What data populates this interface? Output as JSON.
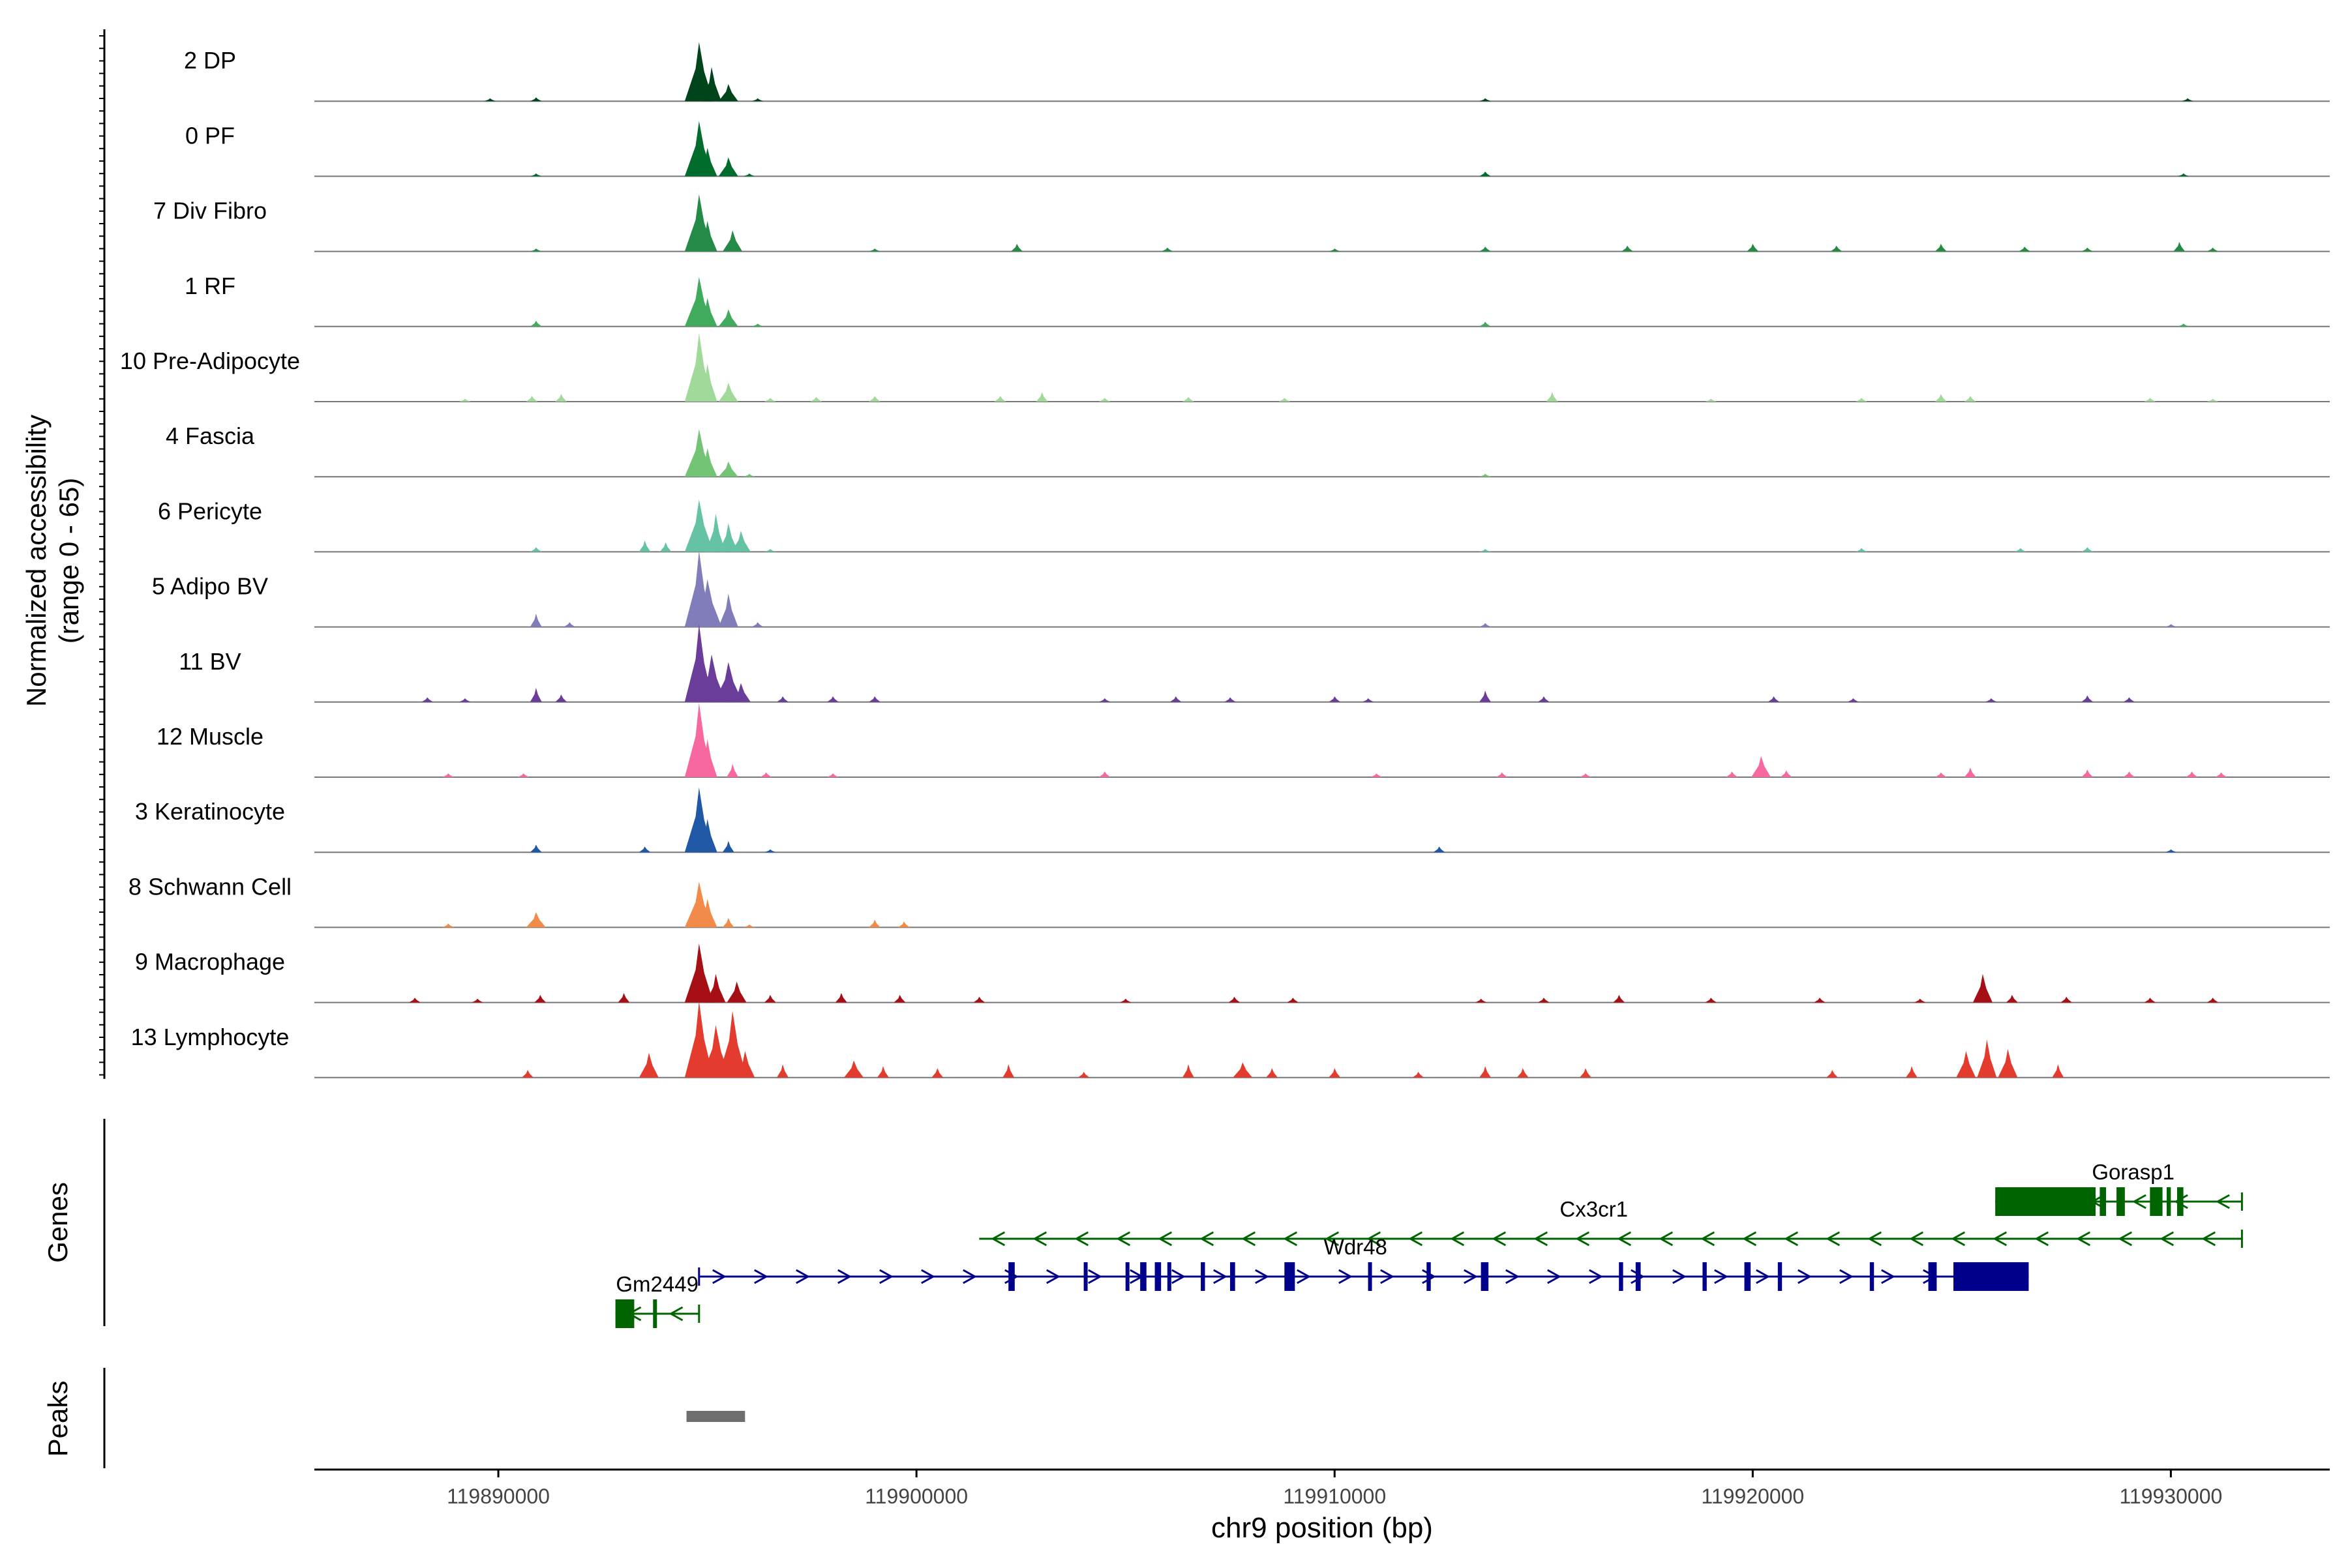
{
  "chart_data": {
    "type": "area",
    "title": "",
    "xlabel": "chr9 position (bp)",
    "ylabel": "Normalized accessibility",
    "ylabel_sub": "(range 0 - 65)",
    "ylim": [
      0,
      65
    ],
    "xlim": [
      119885600,
      119933800
    ],
    "x_ticks": [
      {
        "value": 119890000,
        "label": "119890000"
      },
      {
        "value": 119900000,
        "label": "119900000"
      },
      {
        "value": 119910000,
        "label": "119910000"
      },
      {
        "value": 119920000,
        "label": "119920000"
      },
      {
        "value": 119930000,
        "label": "119930000"
      }
    ],
    "series": [
      {
        "name": "2 DP",
        "color": "#00441b",
        "points": [
          [
            119889800,
            3
          ],
          [
            119890900,
            4
          ],
          [
            119894800,
            62
          ],
          [
            119895100,
            36
          ],
          [
            119895500,
            18
          ],
          [
            119896200,
            3
          ],
          [
            119913600,
            3
          ],
          [
            119930400,
            3
          ]
        ]
      },
      {
        "name": "0 PF",
        "color": "#006d2c",
        "points": [
          [
            119890900,
            3
          ],
          [
            119894800,
            58
          ],
          [
            119895000,
            30
          ],
          [
            119895500,
            20
          ],
          [
            119896000,
            3
          ],
          [
            119913600,
            5
          ],
          [
            119930300,
            3
          ]
        ]
      },
      {
        "name": "7 Div Fibro",
        "color": "#238b45",
        "points": [
          [
            119890900,
            3
          ],
          [
            119894800,
            60
          ],
          [
            119895000,
            32
          ],
          [
            119895600,
            22
          ],
          [
            119899000,
            3
          ],
          [
            119902400,
            8
          ],
          [
            119906000,
            4
          ],
          [
            119910000,
            3
          ],
          [
            119913600,
            5
          ],
          [
            119917000,
            6
          ],
          [
            119920000,
            8
          ],
          [
            119922000,
            6
          ],
          [
            119924500,
            8
          ],
          [
            119926500,
            5
          ],
          [
            119928000,
            4
          ],
          [
            119930200,
            10
          ],
          [
            119931000,
            4
          ]
        ]
      },
      {
        "name": "1 RF",
        "color": "#41ab5d",
        "points": [
          [
            119890900,
            6
          ],
          [
            119894800,
            52
          ],
          [
            119895000,
            30
          ],
          [
            119895500,
            18
          ],
          [
            119896200,
            3
          ],
          [
            119913600,
            5
          ],
          [
            119930300,
            3
          ]
        ]
      },
      {
        "name": "10 Pre-Adipocyte",
        "color": "#a1d99b",
        "points": [
          [
            119889200,
            3
          ],
          [
            119890800,
            6
          ],
          [
            119891500,
            8
          ],
          [
            119894800,
            72
          ],
          [
            119895000,
            40
          ],
          [
            119895500,
            20
          ],
          [
            119896500,
            4
          ],
          [
            119897600,
            5
          ],
          [
            119899000,
            6
          ],
          [
            119902000,
            6
          ],
          [
            119903000,
            10
          ],
          [
            119904500,
            4
          ],
          [
            119906500,
            5
          ],
          [
            119908800,
            4
          ],
          [
            119915200,
            10
          ],
          [
            119919000,
            3
          ],
          [
            119922600,
            4
          ],
          [
            119924500,
            8
          ],
          [
            119925200,
            6
          ],
          [
            119929500,
            4
          ],
          [
            119931000,
            3
          ]
        ]
      },
      {
        "name": "4 Fascia",
        "color": "#74c476",
        "points": [
          [
            119894800,
            50
          ],
          [
            119895000,
            30
          ],
          [
            119895500,
            16
          ],
          [
            119896000,
            3
          ],
          [
            119913600,
            3
          ]
        ]
      },
      {
        "name": "6 Pericyte",
        "color": "#66c2a4",
        "points": [
          [
            119890900,
            5
          ],
          [
            119893500,
            12
          ],
          [
            119894000,
            10
          ],
          [
            119894800,
            55
          ],
          [
            119895200,
            40
          ],
          [
            119895500,
            30
          ],
          [
            119895800,
            22
          ],
          [
            119896500,
            3
          ],
          [
            119913600,
            3
          ],
          [
            119922600,
            4
          ],
          [
            119926400,
            4
          ],
          [
            119928000,
            5
          ]
        ]
      },
      {
        "name": "5 Adipo BV",
        "color": "#807dba",
        "points": [
          [
            119890900,
            14
          ],
          [
            119891700,
            5
          ],
          [
            119894800,
            80
          ],
          [
            119895000,
            50
          ],
          [
            119895500,
            35
          ],
          [
            119896200,
            5
          ],
          [
            119913600,
            4
          ],
          [
            119930000,
            3
          ]
        ]
      },
      {
        "name": "11 BV",
        "color": "#6a3d9a",
        "points": [
          [
            119888300,
            5
          ],
          [
            119889200,
            4
          ],
          [
            119890900,
            15
          ],
          [
            119891500,
            8
          ],
          [
            119894800,
            82
          ],
          [
            119895100,
            50
          ],
          [
            119895500,
            42
          ],
          [
            119895800,
            20
          ],
          [
            119896800,
            6
          ],
          [
            119898000,
            6
          ],
          [
            119899000,
            6
          ],
          [
            119904500,
            4
          ],
          [
            119906200,
            6
          ],
          [
            119907500,
            5
          ],
          [
            119910000,
            6
          ],
          [
            119910800,
            4
          ],
          [
            119913600,
            12
          ],
          [
            119915000,
            6
          ],
          [
            119920500,
            6
          ],
          [
            119922400,
            4
          ],
          [
            119925700,
            4
          ],
          [
            119928000,
            7
          ],
          [
            119929000,
            5
          ]
        ]
      },
      {
        "name": "12 Muscle",
        "color": "#f768a1",
        "points": [
          [
            119888800,
            4
          ],
          [
            119890600,
            4
          ],
          [
            119894800,
            78
          ],
          [
            119895000,
            40
          ],
          [
            119895600,
            14
          ],
          [
            119896400,
            5
          ],
          [
            119898000,
            4
          ],
          [
            119904500,
            6
          ],
          [
            119911000,
            4
          ],
          [
            119914000,
            5
          ],
          [
            119916000,
            4
          ],
          [
            119919500,
            6
          ],
          [
            119920200,
            22
          ],
          [
            119920800,
            7
          ],
          [
            119924500,
            5
          ],
          [
            119925200,
            10
          ],
          [
            119928000,
            8
          ],
          [
            119929000,
            6
          ],
          [
            119930500,
            6
          ],
          [
            119931200,
            5
          ]
        ]
      },
      {
        "name": "3 Keratinocyte",
        "color": "#2158a6",
        "points": [
          [
            119890900,
            8
          ],
          [
            119893500,
            6
          ],
          [
            119894800,
            68
          ],
          [
            119895000,
            35
          ],
          [
            119895500,
            12
          ],
          [
            119896500,
            3
          ],
          [
            119912500,
            6
          ],
          [
            119930000,
            3
          ]
        ]
      },
      {
        "name": "8 Schwann Cell",
        "color": "#f28a4a",
        "points": [
          [
            119888800,
            4
          ],
          [
            119890900,
            16
          ],
          [
            119894800,
            48
          ],
          [
            119895000,
            30
          ],
          [
            119895500,
            10
          ],
          [
            119896000,
            3
          ],
          [
            119899000,
            8
          ],
          [
            119899700,
            6
          ]
        ]
      },
      {
        "name": "9 Macrophage",
        "color": "#a50f15",
        "points": [
          [
            119888000,
            5
          ],
          [
            119889500,
            4
          ],
          [
            119891000,
            8
          ],
          [
            119893000,
            10
          ],
          [
            119894800,
            62
          ],
          [
            119895200,
            30
          ],
          [
            119895700,
            22
          ],
          [
            119896500,
            8
          ],
          [
            119898200,
            10
          ],
          [
            119899600,
            8
          ],
          [
            119901500,
            6
          ],
          [
            119905000,
            4
          ],
          [
            119907600,
            6
          ],
          [
            119909000,
            5
          ],
          [
            119913500,
            4
          ],
          [
            119915000,
            5
          ],
          [
            119916800,
            8
          ],
          [
            119919000,
            5
          ],
          [
            119921600,
            5
          ],
          [
            119924000,
            4
          ],
          [
            119925500,
            30
          ],
          [
            119926200,
            8
          ],
          [
            119927500,
            6
          ],
          [
            119929500,
            5
          ],
          [
            119931000,
            5
          ]
        ]
      },
      {
        "name": "13 Lymphocyte",
        "color": "#e33b2d",
        "points": [
          [
            119890700,
            8
          ],
          [
            119893600,
            26
          ],
          [
            119894800,
            80
          ],
          [
            119895200,
            55
          ],
          [
            119895600,
            70
          ],
          [
            119895900,
            28
          ],
          [
            119896800,
            14
          ],
          [
            119898500,
            18
          ],
          [
            119899200,
            12
          ],
          [
            119900500,
            10
          ],
          [
            119902200,
            14
          ],
          [
            119904000,
            6
          ],
          [
            119906500,
            14
          ],
          [
            119907800,
            16
          ],
          [
            119908500,
            10
          ],
          [
            119910000,
            10
          ],
          [
            119912000,
            6
          ],
          [
            119913600,
            12
          ],
          [
            119914500,
            10
          ],
          [
            119916000,
            10
          ],
          [
            119921900,
            8
          ],
          [
            119923800,
            12
          ],
          [
            119925100,
            28
          ],
          [
            119925600,
            40
          ],
          [
            119926100,
            30
          ],
          [
            119927300,
            14
          ]
        ]
      }
    ],
    "genes": [
      {
        "name": "Gorasp1",
        "start": 119925800,
        "end": 119931700,
        "strand": "-",
        "color": "#006400",
        "label_x": 119929100,
        "exons": [
          [
            119925800,
            119928200
          ],
          [
            119928300,
            119928450
          ],
          [
            119928700,
            119928900
          ],
          [
            119929500,
            119929800
          ],
          [
            119929900,
            119930000
          ],
          [
            119930150,
            119930300
          ]
        ]
      },
      {
        "name": "Cx3cr1",
        "start": 119901500,
        "end": 119931700,
        "strand": "-",
        "color": "#006400",
        "label_x": 119916200,
        "exons": []
      },
      {
        "name": "Wdr48",
        "start": 119894800,
        "end": 119926600,
        "strand": "+",
        "color": "#00008b",
        "label_x": 119910500,
        "exons": [
          [
            119902200,
            119902350
          ],
          [
            119904000,
            119904080
          ],
          [
            119905000,
            119905080
          ],
          [
            119905350,
            119905500
          ],
          [
            119905700,
            119905850
          ],
          [
            119906000,
            119906080
          ],
          [
            119906800,
            119906900
          ],
          [
            119907500,
            119907620
          ],
          [
            119908800,
            119909050
          ],
          [
            119910800,
            119910880
          ],
          [
            119912200,
            119912300
          ],
          [
            119913500,
            119913680
          ],
          [
            119916800,
            119916900
          ],
          [
            119917200,
            119917320
          ],
          [
            119918800,
            119918900
          ],
          [
            119919800,
            119919950
          ],
          [
            119920600,
            119920700
          ],
          [
            119922800,
            119922900
          ],
          [
            119924200,
            119924400
          ],
          [
            119924800,
            119926600
          ]
        ]
      },
      {
        "name": "Gm2449",
        "start": 119892800,
        "end": 119894800,
        "strand": "-",
        "color": "#006400",
        "label_x": 119893800,
        "exons": [
          [
            119892800,
            119893250
          ],
          [
            119893700,
            119893780
          ]
        ]
      }
    ],
    "peaks": [
      [
        119894500,
        119895900
      ]
    ],
    "panel_labels": {
      "genes": "Genes",
      "peaks": "Peaks"
    }
  }
}
